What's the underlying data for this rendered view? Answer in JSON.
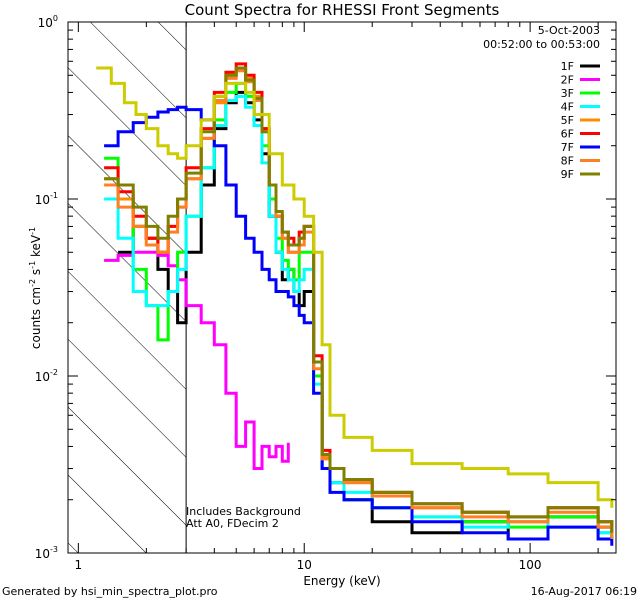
{
  "chart_data": {
    "type": "line",
    "title": "Count Spectra for RHESSI Front Segments",
    "xlabel": "Energy (keV)",
    "ylabel_parts": [
      "counts cm",
      "-2",
      " s",
      "-1",
      " keV",
      "-1"
    ],
    "xscale": "log",
    "yscale": "log",
    "xlim": [
      0.9,
      240
    ],
    "ylim": [
      0.001,
      1.0
    ],
    "x_ticks": [
      {
        "value": 1,
        "label": "1"
      },
      {
        "value": 10,
        "label": "10"
      },
      {
        "value": 100,
        "label": "100"
      }
    ],
    "y_ticks": [
      {
        "value": 1,
        "base": "10",
        "exp": "0"
      },
      {
        "value": 0.1,
        "base": "10",
        "exp": "-1"
      },
      {
        "value": 0.01,
        "base": "10",
        "exp": "-2"
      },
      {
        "value": 0.001,
        "base": "10",
        "exp": "-3"
      }
    ],
    "date": "5-Oct-2003",
    "time_range": "00:52:00 to 00:53:00",
    "annotations": [
      "Includes Background",
      "Att A0, FDecim 2"
    ],
    "shaded_region_max_kev": 3,
    "footer_left": "Generated by hsi_min_spectra_plot.pro",
    "footer_right": "16-Aug-2017 06:19",
    "series": [
      {
        "name": "1F",
        "color": "#000000",
        "x": [
          1.5,
          1.75,
          2,
          2.25,
          2.5,
          2.75,
          3,
          3.5,
          4,
          4.5,
          5,
          5.5,
          6,
          6.5,
          7,
          7.5,
          8,
          8.5,
          9,
          9.5,
          10,
          11,
          12,
          13,
          15,
          20,
          30,
          50,
          80,
          120,
          200,
          230
        ],
        "y": [
          0.05,
          0.07,
          0.06,
          0.04,
          0.03,
          0.02,
          0.05,
          0.12,
          0.25,
          0.35,
          0.4,
          0.35,
          0.28,
          0.18,
          0.08,
          0.05,
          0.035,
          0.04,
          0.03,
          0.025,
          0.03,
          0.012,
          0.003,
          0.0025,
          0.002,
          0.0015,
          0.0013,
          0.0015,
          0.0012,
          0.0016,
          0.0014,
          0.0012
        ]
      },
      {
        "name": "2F",
        "color": "#ff00ff",
        "x": [
          1.3,
          1.5,
          1.75,
          2,
          2.25,
          2.5,
          2.75,
          3,
          3.5,
          4,
          4.5,
          5,
          5.5,
          6,
          6.5,
          7,
          7.5,
          8,
          8.5
        ],
        "y": [
          0.045,
          0.048,
          0.05,
          0.05,
          0.048,
          0.042,
          0.035,
          0.025,
          0.02,
          0.015,
          0.008,
          0.004,
          0.0055,
          0.003,
          0.004,
          0.0035,
          0.004,
          0.0033,
          0.0042
        ]
      },
      {
        "name": "3F",
        "color": "#00ff00",
        "x": [
          1.3,
          1.5,
          1.75,
          2,
          2.25,
          2.5,
          2.75,
          3,
          3.5,
          4,
          4.5,
          5,
          5.5,
          6,
          6.5,
          7,
          7.5,
          8,
          8.5,
          9,
          9.5,
          10,
          11,
          12,
          13,
          15,
          20,
          30,
          50,
          80,
          120,
          200,
          230
        ],
        "y": [
          0.17,
          0.1,
          0.04,
          0.025,
          0.016,
          0.03,
          0.05,
          0.08,
          0.15,
          0.28,
          0.4,
          0.45,
          0.38,
          0.3,
          0.2,
          0.1,
          0.06,
          0.045,
          0.04,
          0.035,
          0.05,
          0.05,
          0.01,
          0.003,
          0.0025,
          0.002,
          0.0018,
          0.0016,
          0.0015,
          0.0014,
          0.0016,
          0.0013,
          0.0012
        ]
      },
      {
        "name": "4F",
        "color": "#00ffff",
        "x": [
          1.3,
          1.5,
          1.75,
          2,
          2.25,
          2.5,
          2.75,
          3,
          3.5,
          4,
          4.5,
          5,
          5.5,
          6,
          6.5,
          7,
          7.5,
          8,
          8.5,
          9,
          9.5,
          10,
          11,
          12,
          13,
          15,
          20,
          30,
          50,
          80,
          120,
          200,
          230
        ],
        "y": [
          0.1,
          0.06,
          0.03,
          0.025,
          0.025,
          0.03,
          0.04,
          0.08,
          0.15,
          0.26,
          0.36,
          0.38,
          0.33,
          0.26,
          0.16,
          0.08,
          0.05,
          0.04,
          0.035,
          0.03,
          0.035,
          0.04,
          0.009,
          0.003,
          0.0025,
          0.0022,
          0.0018,
          0.0016,
          0.0014,
          0.0015,
          0.0014,
          0.0013,
          0.0012
        ]
      },
      {
        "name": "5F",
        "color": "#ff8c00",
        "x": [
          1.3,
          1.5,
          1.75,
          2,
          2.25,
          2.5,
          2.75,
          3,
          3.5,
          4,
          4.5,
          5,
          5.5,
          6,
          6.5,
          7,
          7.5,
          8,
          8.5,
          9,
          9.5,
          10,
          11,
          12,
          13,
          15,
          20,
          30,
          50,
          80,
          120,
          200,
          230
        ],
        "y": [
          0.13,
          0.1,
          0.07,
          0.06,
          0.05,
          0.07,
          0.09,
          0.13,
          0.22,
          0.35,
          0.5,
          0.55,
          0.48,
          0.38,
          0.25,
          0.12,
          0.08,
          0.06,
          0.05,
          0.05,
          0.06,
          0.07,
          0.012,
          0.0035,
          0.003,
          0.0025,
          0.0022,
          0.0018,
          0.0017,
          0.0015,
          0.0018,
          0.0015,
          0.0013
        ]
      },
      {
        "name": "6F",
        "color": "#ff0000",
        "x": [
          1.3,
          1.5,
          1.75,
          2,
          2.25,
          2.5,
          2.75,
          3,
          3.5,
          4,
          4.5,
          5,
          5.5,
          6,
          6.5,
          7,
          7.5,
          8,
          8.5,
          9,
          9.5,
          10,
          11,
          12,
          13,
          15,
          20,
          30,
          50,
          80,
          120,
          200,
          230
        ],
        "y": [
          0.15,
          0.11,
          0.08,
          0.06,
          0.05,
          0.07,
          0.1,
          0.15,
          0.25,
          0.4,
          0.52,
          0.58,
          0.5,
          0.4,
          0.25,
          0.12,
          0.08,
          0.065,
          0.06,
          0.055,
          0.065,
          0.07,
          0.013,
          0.0038,
          0.003,
          0.0026,
          0.0022,
          0.0019,
          0.0017,
          0.0016,
          0.0018,
          0.0015,
          0.0013
        ]
      },
      {
        "name": "7F",
        "color": "#0000ff",
        "x": [
          1.3,
          1.5,
          1.75,
          2,
          2.25,
          2.5,
          2.75,
          3,
          3.5,
          4,
          4.5,
          5,
          5.5,
          6,
          6.5,
          7,
          7.5,
          8,
          8.5,
          9,
          9.5,
          10,
          11,
          12,
          13,
          15,
          20,
          30,
          50,
          80,
          120,
          200,
          230
        ],
        "y": [
          0.2,
          0.24,
          0.27,
          0.29,
          0.31,
          0.32,
          0.33,
          0.32,
          0.28,
          0.2,
          0.12,
          0.08,
          0.06,
          0.05,
          0.04,
          0.035,
          0.03,
          0.03,
          0.028,
          0.025,
          0.022,
          0.02,
          0.008,
          0.003,
          0.0022,
          0.002,
          0.0018,
          0.0015,
          0.0013,
          0.0012,
          0.0014,
          0.0012,
          0.0011
        ]
      },
      {
        "name": "8F",
        "color": "#ff7f24",
        "x": [
          1.3,
          1.5,
          1.75,
          2,
          2.25,
          2.5,
          2.75,
          3,
          3.5,
          4,
          4.5,
          5,
          5.5,
          6,
          6.5,
          7,
          7.5,
          8,
          8.5,
          9,
          9.5,
          10,
          11,
          12,
          13,
          15,
          20,
          30,
          50,
          80,
          120,
          200,
          230
        ],
        "y": [
          0.12,
          0.09,
          0.07,
          0.055,
          0.05,
          0.065,
          0.09,
          0.13,
          0.22,
          0.36,
          0.48,
          0.53,
          0.46,
          0.36,
          0.24,
          0.12,
          0.08,
          0.06,
          0.05,
          0.05,
          0.055,
          0.065,
          0.011,
          0.0034,
          0.003,
          0.0025,
          0.0021,
          0.0018,
          0.0016,
          0.0015,
          0.0017,
          0.0014,
          0.0012
        ]
      },
      {
        "name": "9F",
        "color": "#808000",
        "x": [
          1.3,
          1.5,
          1.75,
          2,
          2.25,
          2.5,
          2.75,
          3,
          3.5,
          4,
          4.5,
          5,
          5.5,
          6,
          6.5,
          7,
          7.5,
          8,
          8.5,
          9,
          9.5,
          10,
          11,
          12,
          13,
          15,
          20,
          30,
          50,
          80,
          120,
          200,
          230
        ],
        "y": [
          0.13,
          0.12,
          0.09,
          0.07,
          0.06,
          0.08,
          0.1,
          0.14,
          0.24,
          0.38,
          0.5,
          0.55,
          0.47,
          0.37,
          0.24,
          0.12,
          0.085,
          0.065,
          0.055,
          0.055,
          0.06,
          0.07,
          0.012,
          0.0036,
          0.003,
          0.0026,
          0.0022,
          0.0019,
          0.0017,
          0.0016,
          0.0018,
          0.0015,
          0.0013
        ]
      },
      {
        "name": "",
        "color": "#cccc00",
        "x": [
          1.2,
          1.4,
          1.6,
          1.8,
          2,
          2.25,
          2.5,
          2.75,
          3,
          3.5,
          4,
          4.5,
          5,
          5.5,
          6,
          7,
          8,
          9,
          10,
          11,
          12,
          13,
          15,
          20,
          30,
          50,
          80,
          120,
          200,
          230
        ],
        "y": [
          0.55,
          0.45,
          0.35,
          0.3,
          0.25,
          0.2,
          0.18,
          0.17,
          0.2,
          0.28,
          0.38,
          0.45,
          0.45,
          0.4,
          0.3,
          0.18,
          0.12,
          0.1,
          0.08,
          0.05,
          0.015,
          0.006,
          0.0045,
          0.0038,
          0.0032,
          0.003,
          0.0028,
          0.0025,
          0.002,
          0.0018
        ]
      }
    ]
  }
}
